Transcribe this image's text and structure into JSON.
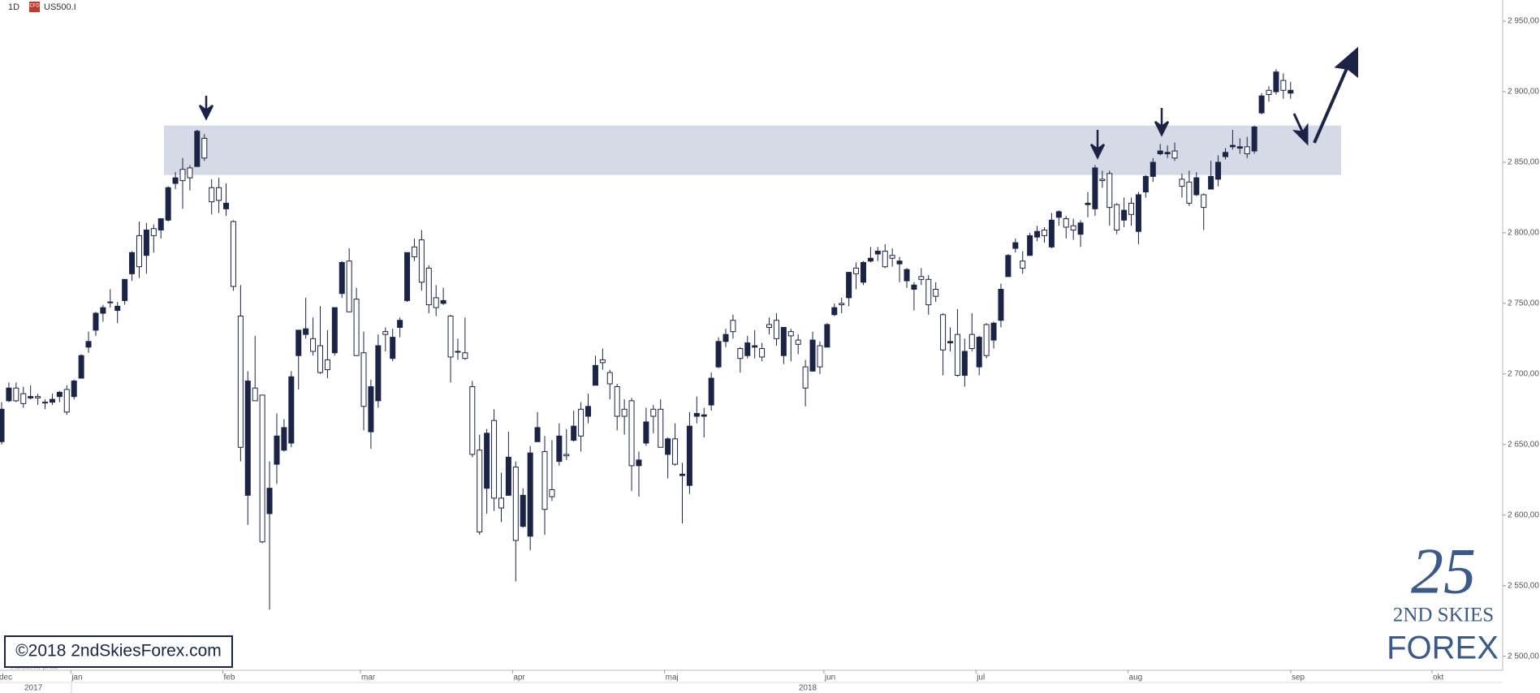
{
  "header": {
    "timeframe": "1D",
    "icon": "CFD",
    "symbol": "US500.I"
  },
  "copyright": "©2018 2ndSkiesForex.com",
  "indicative": "Indicative price",
  "logo": {
    "mark": "25",
    "line1": "2ND SKIES",
    "line2": "FOREX"
  },
  "chart_data": {
    "type": "candlestick",
    "categories": [
      "dec",
      null,
      null,
      null,
      null,
      null,
      null,
      null,
      null,
      null,
      "jan",
      null,
      null,
      null,
      null,
      null,
      null,
      null,
      null,
      null,
      null,
      null,
      null,
      null,
      null,
      null,
      null,
      null,
      null,
      null,
      null,
      "feb",
      null,
      null,
      null,
      null,
      null,
      null,
      null,
      null,
      null,
      null,
      null,
      null,
      null,
      null,
      null,
      null,
      null,
      null,
      "mar",
      null,
      null,
      null,
      null,
      null,
      null,
      null,
      null,
      null,
      null,
      null,
      null,
      null,
      null,
      null,
      null,
      null,
      null,
      null,
      null,
      "apr",
      null,
      null,
      null,
      null,
      null,
      null,
      null,
      null,
      null,
      null,
      null,
      null,
      null,
      null,
      null,
      null,
      null,
      null,
      null,
      null,
      "maj",
      null,
      null,
      null,
      null,
      null,
      null,
      null,
      null,
      null,
      null,
      null,
      null,
      null,
      null,
      null,
      null,
      null,
      null,
      null,
      null,
      null,
      "jun",
      null,
      null,
      null,
      null,
      null,
      null,
      null,
      null,
      null,
      null,
      null,
      null,
      null,
      null,
      null,
      null,
      null,
      null,
      null,
      null,
      "jul",
      null,
      null,
      null,
      null,
      null,
      null,
      null,
      null,
      null,
      null,
      null,
      null,
      null,
      null,
      null,
      null,
      null,
      null,
      null,
      null,
      "aug",
      null,
      null,
      null,
      null,
      null,
      null,
      null,
      null,
      null,
      null,
      null,
      null,
      null,
      null,
      null,
      null,
      null,
      null,
      null,
      null,
      null,
      null
    ],
    "extra_months": [
      "sep",
      "okt"
    ],
    "years": [
      "2017",
      "2018"
    ],
    "up_color": "#1b2446",
    "down_color": "#ffffff",
    "line_color": "#1b2446",
    "zone": [
      2841,
      2876
    ],
    "zone_color": "#d5dae6",
    "ohlc": [
      [
        2652,
        2680,
        2650,
        2675
      ],
      [
        2681,
        2694,
        2680,
        2690
      ],
      [
        2690,
        2694,
        2680,
        2681
      ],
      [
        2686,
        2691,
        2676,
        2679
      ],
      [
        2683,
        2692,
        2682,
        2684
      ],
      [
        2684,
        2686,
        2678,
        2683
      ],
      [
        2680,
        2682,
        2675,
        2680
      ],
      [
        2680,
        2686,
        2678,
        2682
      ],
      [
        2684,
        2688,
        2680,
        2687
      ],
      [
        2689,
        2692,
        2671,
        2673
      ],
      [
        2684,
        2696,
        2682,
        2695
      ],
      [
        2697,
        2714,
        2697,
        2713
      ],
      [
        2719,
        2730,
        2715,
        2723
      ],
      [
        2731,
        2744,
        2727,
        2743
      ],
      [
        2743,
        2749,
        2737,
        2747
      ],
      [
        2751,
        2760,
        2747,
        2751
      ],
      [
        2745,
        2751,
        2736,
        2748
      ],
      [
        2752,
        2767,
        2749,
        2767
      ],
      [
        2771,
        2787,
        2766,
        2786
      ],
      [
        2798,
        2808,
        2768,
        2776
      ],
      [
        2784,
        2807,
        2771,
        2802
      ],
      [
        2803,
        2806,
        2786,
        2798
      ],
      [
        2802,
        2810,
        2796,
        2810
      ],
      [
        2809,
        2833,
        2808,
        2832
      ],
      [
        2835,
        2843,
        2831,
        2839
      ],
      [
        2845,
        2853,
        2817,
        2837
      ],
      [
        2846,
        2848,
        2830,
        2839
      ],
      [
        2847,
        2873,
        2847,
        2872
      ],
      [
        2867,
        2870,
        2851,
        2853
      ],
      [
        2832,
        2838,
        2813,
        2822
      ],
      [
        2832,
        2839,
        2814,
        2823
      ],
      [
        2817,
        2835,
        2812,
        2821
      ],
      [
        2808,
        2809,
        2759,
        2762
      ],
      [
        2741,
        2763,
        2638,
        2648
      ],
      [
        2614,
        2702,
        2593,
        2695
      ],
      [
        2690,
        2727,
        2681,
        2681
      ],
      [
        2685,
        2685,
        2580,
        2581
      ],
      [
        2601,
        2638,
        2533,
        2619
      ],
      [
        2636,
        2672,
        2622,
        2656
      ],
      [
        2646,
        2668,
        2645,
        2662
      ],
      [
        2651,
        2702,
        2648,
        2698
      ],
      [
        2713,
        2731,
        2689,
        2731
      ],
      [
        2728,
        2754,
        2725,
        2732
      ],
      [
        2725,
        2740,
        2713,
        2716
      ],
      [
        2720,
        2748,
        2700,
        2701
      ],
      [
        2710,
        2731,
        2697,
        2703
      ],
      [
        2715,
        2747,
        2713,
        2747
      ],
      [
        2757,
        2780,
        2754,
        2779
      ],
      [
        2780,
        2789,
        2744,
        2744
      ],
      [
        2753,
        2761,
        2713,
        2713
      ],
      [
        2715,
        2730,
        2660,
        2677
      ],
      [
        2659,
        2696,
        2647,
        2691
      ],
      [
        2681,
        2728,
        2676,
        2720
      ],
      [
        2730,
        2733,
        2716,
        2728
      ],
      [
        2711,
        2732,
        2709,
        2726
      ],
      [
        2733,
        2740,
        2726,
        2738
      ],
      [
        2752,
        2786,
        2751,
        2786
      ],
      [
        2790,
        2796,
        2780,
        2783
      ],
      [
        2795,
        2802,
        2759,
        2765
      ],
      [
        2775,
        2777,
        2743,
        2749
      ],
      [
        2754,
        2763,
        2741,
        2747
      ],
      [
        2750,
        2761,
        2749,
        2752
      ],
      [
        2741,
        2742,
        2694,
        2712
      ],
      [
        2716,
        2725,
        2710,
        2716
      ],
      [
        2715,
        2740,
        2710,
        2711
      ],
      [
        2691,
        2695,
        2641,
        2643
      ],
      [
        2646,
        2657,
        2586,
        2588
      ],
      [
        2619,
        2661,
        2601,
        2658
      ],
      [
        2667,
        2675,
        2603,
        2612
      ],
      [
        2612,
        2630,
        2595,
        2605
      ],
      [
        2614,
        2659,
        2614,
        2641
      ],
      [
        2634,
        2638,
        2553,
        2582
      ],
      [
        2592,
        2619,
        2591,
        2614
      ],
      [
        2585,
        2649,
        2575,
        2644
      ],
      [
        2652,
        2673,
        2652,
        2662
      ],
      [
        2645,
        2656,
        2586,
        2604
      ],
      [
        2618,
        2653,
        2610,
        2613
      ],
      [
        2638,
        2665,
        2635,
        2656
      ],
      [
        2643,
        2661,
        2639,
        2642
      ],
      [
        2653,
        2674,
        2652,
        2663
      ],
      [
        2675,
        2680,
        2645,
        2656
      ],
      [
        2670,
        2686,
        2665,
        2677
      ],
      [
        2692,
        2713,
        2692,
        2706
      ],
      [
        2710,
        2718,
        2703,
        2708
      ],
      [
        2701,
        2703,
        2682,
        2693
      ],
      [
        2691,
        2693,
        2660,
        2670
      ],
      [
        2675,
        2682,
        2657,
        2670
      ],
      [
        2681,
        2683,
        2617,
        2635
      ],
      [
        2635,
        2645,
        2613,
        2639
      ],
      [
        2651,
        2676,
        2649,
        2666
      ],
      [
        2675,
        2678,
        2658,
        2670
      ],
      [
        2675,
        2682,
        2648,
        2648
      ],
      [
        2643,
        2655,
        2626,
        2654
      ],
      [
        2654,
        2665,
        2635,
        2636
      ],
      [
        2628,
        2637,
        2594,
        2629
      ],
      [
        2621,
        2673,
        2615,
        2663
      ],
      [
        2670,
        2684,
        2665,
        2672
      ],
      [
        2670,
        2676,
        2655,
        2671
      ],
      [
        2678,
        2701,
        2674,
        2697
      ],
      [
        2705,
        2726,
        2704,
        2723
      ],
      [
        2723,
        2732,
        2719,
        2728
      ],
      [
        2738,
        2742,
        2725,
        2730
      ],
      [
        2718,
        2719,
        2701,
        2711
      ],
      [
        2713,
        2727,
        2711,
        2722
      ],
      [
        2719,
        2731,
        2711,
        2720
      ],
      [
        2718,
        2722,
        2709,
        2712
      ],
      [
        2735,
        2740,
        2728,
        2733
      ],
      [
        2738,
        2743,
        2720,
        2725
      ],
      [
        2713,
        2733,
        2707,
        2733
      ],
      [
        2730,
        2732,
        2709,
        2727
      ],
      [
        2724,
        2728,
        2714,
        2721
      ],
      [
        2705,
        2710,
        2677,
        2690
      ],
      [
        2702,
        2730,
        2702,
        2724
      ],
      [
        2720,
        2723,
        2700,
        2705
      ],
      [
        2719,
        2736,
        2719,
        2735
      ],
      [
        2742,
        2750,
        2741,
        2747
      ],
      [
        2750,
        2754,
        2743,
        2749
      ],
      [
        2754,
        2772,
        2748,
        2772
      ],
      [
        2775,
        2779,
        2760,
        2771
      ],
      [
        2765,
        2780,
        2763,
        2779
      ],
      [
        2780,
        2790,
        2779,
        2782
      ],
      [
        2785,
        2790,
        2780,
        2787
      ],
      [
        2787,
        2792,
        2775,
        2776
      ],
      [
        2784,
        2789,
        2776,
        2782
      ],
      [
        2778,
        2783,
        2765,
        2780
      ],
      [
        2766,
        2775,
        2761,
        2774
      ],
      [
        2760,
        2765,
        2745,
        2763
      ],
      [
        2769,
        2775,
        2763,
        2767
      ],
      [
        2767,
        2770,
        2742,
        2749
      ],
      [
        2760,
        2765,
        2751,
        2755
      ],
      [
        2742,
        2743,
        2699,
        2717
      ],
      [
        2722,
        2733,
        2716,
        2723
      ],
      [
        2728,
        2746,
        2698,
        2699
      ],
      [
        2699,
        2725,
        2691,
        2716
      ],
      [
        2728,
        2743,
        2716,
        2718
      ],
      [
        2705,
        2727,
        2699,
        2726
      ],
      [
        2735,
        2736,
        2711,
        2713
      ],
      [
        2724,
        2737,
        2718,
        2736
      ],
      [
        2738,
        2764,
        2733,
        2760
      ],
      [
        2769,
        2785,
        2769,
        2784
      ],
      [
        2789,
        2796,
        2786,
        2793
      ],
      [
        2780,
        2787,
        2771,
        2775
      ],
      [
        2784,
        2800,
        2784,
        2798
      ],
      [
        2797,
        2805,
        2794,
        2801
      ],
      [
        2802,
        2804,
        2793,
        2798
      ],
      [
        2790,
        2814,
        2789,
        2809
      ],
      [
        2811,
        2816,
        2805,
        2815
      ],
      [
        2810,
        2812,
        2796,
        2804
      ],
      [
        2805,
        2810,
        2795,
        2802
      ],
      [
        2799,
        2809,
        2790,
        2807
      ],
      [
        2820,
        2829,
        2811,
        2821
      ],
      [
        2817,
        2848,
        2812,
        2846
      ],
      [
        2838,
        2844,
        2832,
        2837
      ],
      [
        2842,
        2844,
        2805,
        2818
      ],
      [
        2820,
        2821,
        2799,
        2802
      ],
      [
        2809,
        2825,
        2804,
        2816
      ],
      [
        2821,
        2825,
        2805,
        2813
      ],
      [
        2801,
        2829,
        2792,
        2827
      ],
      [
        2829,
        2841,
        2825,
        2840
      ],
      [
        2840,
        2853,
        2836,
        2850
      ],
      [
        2856,
        2863,
        2855,
        2858
      ],
      [
        2856,
        2862,
        2853,
        2857
      ],
      [
        2858,
        2864,
        2851,
        2853
      ],
      [
        2838,
        2842,
        2825,
        2833
      ],
      [
        2836,
        2844,
        2819,
        2821
      ],
      [
        2827,
        2843,
        2826,
        2839
      ],
      [
        2827,
        2828,
        2802,
        2818
      ],
      [
        2831,
        2851,
        2831,
        2840
      ],
      [
        2838,
        2855,
        2833,
        2850
      ],
      [
        2854,
        2860,
        2852,
        2857
      ],
      [
        2861,
        2873,
        2859,
        2862
      ],
      [
        2860,
        2867,
        2856,
        2861
      ],
      [
        2861,
        2868,
        2853,
        2856
      ],
      [
        2858,
        2876,
        2856,
        2875
      ],
      [
        2885,
        2899,
        2884,
        2897
      ],
      [
        2901,
        2904,
        2893,
        2898
      ],
      [
        2900,
        2916,
        2898,
        2914
      ],
      [
        2908,
        2913,
        2895,
        2901
      ],
      [
        2899,
        2907,
        2895,
        2901
      ]
    ],
    "ylim": [
      2490,
      2965
    ],
    "yticks": [
      {
        "value": 2500,
        "label": "2 500,00"
      },
      {
        "value": 2550,
        "label": "2 550,00"
      },
      {
        "value": 2600,
        "label": "2 600,00"
      },
      {
        "value": 2650,
        "label": "2 650,00"
      },
      {
        "value": 2700,
        "label": "2 700,00"
      },
      {
        "value": 2750,
        "label": "2 750,00"
      },
      {
        "value": 2800,
        "label": "2 800,00"
      },
      {
        "value": 2850,
        "label": "2 850,00"
      },
      {
        "value": 2900,
        "label": "2 900,00"
      },
      {
        "value": 2950,
        "label": "2 950,00"
      }
    ]
  }
}
